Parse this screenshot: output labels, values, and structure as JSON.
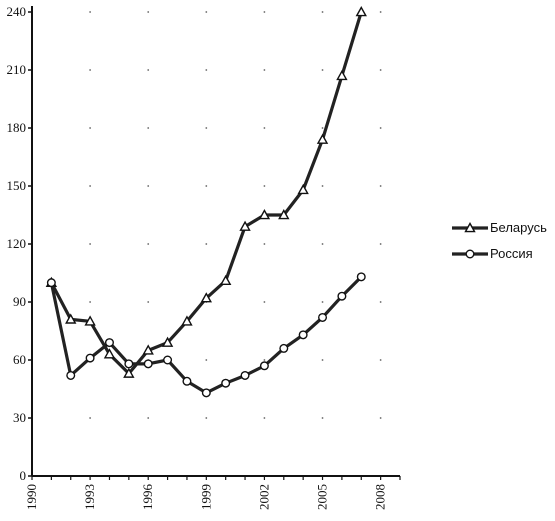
{
  "chart_data": {
    "type": "line",
    "title": "",
    "xlabel": "",
    "ylabel": "",
    "xlim": [
      1990,
      2009
    ],
    "ylim": [
      0,
      240
    ],
    "x_ticks": [
      1990,
      1993,
      1996,
      1999,
      2002,
      2005,
      2008
    ],
    "y_ticks": [
      0,
      30,
      60,
      90,
      120,
      150,
      180,
      210,
      240
    ],
    "grid": "dotted",
    "legend_position": "right",
    "series": [
      {
        "name": "Беларусь",
        "marker": "triangle",
        "color": "#222222",
        "x": [
          1991,
          1992,
          1993,
          1994,
          1995,
          1996,
          1997,
          1998,
          1999,
          2000,
          2001,
          2002,
          2003,
          2004,
          2005,
          2006,
          2007
        ],
        "y": [
          100,
          81,
          80,
          63,
          53,
          65,
          69,
          80,
          92,
          101,
          129,
          135,
          135,
          148,
          174,
          207,
          240
        ]
      },
      {
        "name": "Россия",
        "marker": "circle",
        "color": "#222222",
        "x": [
          1991,
          1992,
          1993,
          1994,
          1995,
          1996,
          1997,
          1998,
          1999,
          2000,
          2001,
          2002,
          2003,
          2004,
          2005,
          2006,
          2007
        ],
        "y": [
          100,
          52,
          61,
          69,
          58,
          58,
          60,
          49,
          43,
          48,
          52,
          57,
          66,
          73,
          82,
          93,
          103
        ]
      }
    ]
  }
}
